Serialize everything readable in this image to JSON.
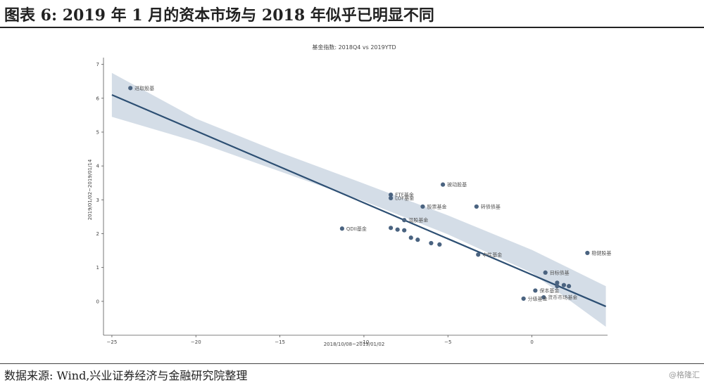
{
  "header": {
    "title": "图表 6:  2019 年 1 月的资本市场与 2018 年似乎已明显不同"
  },
  "footer": {
    "source": "数据来源:  Wind,兴业证券经济与金融研究院整理",
    "watermark": "@格隆汇"
  },
  "chart_data": {
    "type": "scatter",
    "title": "基金指数: 2018Q4 vs 2019YTD",
    "xlabel": "2018/10/08~2019/01/02",
    "ylabel": "2019/01/02~2019/01/14",
    "xlim": [
      -25.5,
      4.5
    ],
    "ylim": [
      -1.0,
      7.2
    ],
    "xticks": [
      -25,
      -20,
      -15,
      -10,
      -5,
      0
    ],
    "yticks": [
      0,
      1,
      2,
      3,
      4,
      5,
      6,
      7
    ],
    "grid": false,
    "colors": {
      "point": "#4a6380",
      "line": "#2d4f73",
      "band": "#d4dde7"
    },
    "points": [
      {
        "x": -23.9,
        "y": 6.3,
        "label": "进取股基"
      },
      {
        "x": -5.3,
        "y": 3.45,
        "label": "被动股基"
      },
      {
        "x": -8.4,
        "y": 3.15,
        "label": "ETF基金"
      },
      {
        "x": -8.4,
        "y": 3.05,
        "label": "LOF基金"
      },
      {
        "x": -6.5,
        "y": 2.8,
        "label": "股票基金"
      },
      {
        "x": -3.3,
        "y": 2.8,
        "label": "转债债基"
      },
      {
        "x": -7.6,
        "y": 2.4,
        "label": "混股基金"
      },
      {
        "x": -11.3,
        "y": 2.15,
        "label": "QDII基金"
      },
      {
        "x": -8.4,
        "y": 2.17,
        "label": ""
      },
      {
        "x": -8.0,
        "y": 2.12,
        "label": ""
      },
      {
        "x": -7.6,
        "y": 2.1,
        "label": ""
      },
      {
        "x": -7.2,
        "y": 1.88,
        "label": ""
      },
      {
        "x": -6.8,
        "y": 1.82,
        "label": ""
      },
      {
        "x": -6.0,
        "y": 1.72,
        "label": ""
      },
      {
        "x": -5.5,
        "y": 1.68,
        "label": ""
      },
      {
        "x": -3.2,
        "y": 1.38,
        "label": "中性基金"
      },
      {
        "x": 3.3,
        "y": 1.43,
        "label": "稳健股基"
      },
      {
        "x": 0.8,
        "y": 0.85,
        "label": "目标债基"
      },
      {
        "x": 1.5,
        "y": 0.55,
        "label": ""
      },
      {
        "x": 1.5,
        "y": 0.45,
        "label": ""
      },
      {
        "x": 1.9,
        "y": 0.48,
        "label": ""
      },
      {
        "x": 2.2,
        "y": 0.45,
        "label": ""
      },
      {
        "x": 0.2,
        "y": 0.32,
        "label": "保本基金"
      },
      {
        "x": 0.7,
        "y": 0.12,
        "label": "货币市场基金"
      },
      {
        "x": -0.5,
        "y": 0.08,
        "label": "分级基金"
      }
    ],
    "regression": {
      "x": [
        -25,
        4.4
      ],
      "y": [
        6.1,
        -0.15
      ]
    },
    "confidence_band": {
      "x": [
        -25,
        -20,
        -15,
        -10,
        -5,
        0,
        4.4
      ],
      "upper": [
        6.75,
        5.4,
        4.4,
        3.48,
        2.54,
        1.52,
        0.45
      ],
      "lower": [
        5.45,
        4.72,
        3.84,
        2.96,
        1.98,
        0.84,
        -0.75
      ]
    }
  }
}
